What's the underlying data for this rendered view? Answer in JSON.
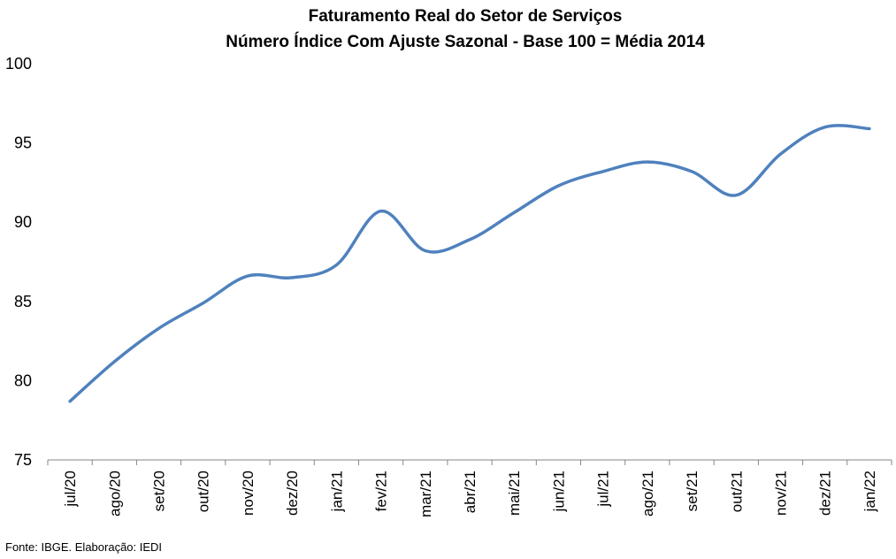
{
  "chart_data": {
    "type": "line",
    "title": "Faturamento Real do Setor de Serviços",
    "subtitle": "Número Índice Com Ajuste Sazonal - Base 100 = Média 2014",
    "xlabel": "",
    "ylabel": "",
    "ylim": [
      75,
      100
    ],
    "yticks": [
      75,
      80,
      85,
      90,
      95,
      100
    ],
    "grid": false,
    "legend": "none",
    "categories": [
      "jul/20",
      "ago/20",
      "set/20",
      "out/20",
      "nov/20",
      "dez/20",
      "jan/21",
      "fev/21",
      "mar/21",
      "abr/21",
      "mai/21",
      "jun/21",
      "jul/21",
      "ago/21",
      "set/21",
      "out/21",
      "nov/21",
      "dez/21",
      "jan/22"
    ],
    "series": [
      {
        "color": "#4F81BD",
        "values": [
          78.7,
          81.2,
          83.3,
          84.9,
          86.6,
          86.5,
          87.3,
          90.7,
          88.2,
          88.9,
          90.6,
          92.3,
          93.2,
          93.8,
          93.2,
          91.7,
          94.3,
          96.0,
          95.9
        ]
      }
    ]
  },
  "source": "Fonte: IBGE. Elaboração: IEDI"
}
